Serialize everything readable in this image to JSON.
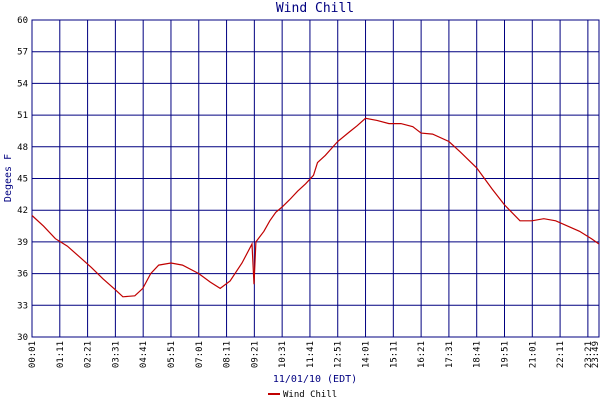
{
  "chart_data": {
    "type": "line",
    "title": "Wind Chill",
    "xlabel": "11/01/10 (EDT)",
    "ylabel": "Degees F",
    "xlim": [
      "00:01",
      "23:49"
    ],
    "xticks": [
      "00:01",
      "01:11",
      "02:21",
      "03:31",
      "04:41",
      "05:51",
      "07:01",
      "08:11",
      "09:21",
      "10:31",
      "11:41",
      "12:51",
      "14:01",
      "15:11",
      "16:21",
      "17:31",
      "18:41",
      "19:51",
      "21:01",
      "22:11",
      "23:21",
      "23:49"
    ],
    "ylim": [
      30,
      60
    ],
    "yticks": [
      30,
      33,
      36,
      39,
      42,
      45,
      48,
      51,
      54,
      57,
      60
    ],
    "grid": true,
    "grid_color": "#000080",
    "x": [
      "00:01",
      "00:30",
      "01:00",
      "01:30",
      "02:00",
      "02:30",
      "03:00",
      "03:30",
      "03:50",
      "04:20",
      "04:40",
      "05:00",
      "05:20",
      "05:51",
      "06:20",
      "07:01",
      "07:30",
      "07:55",
      "08:20",
      "08:50",
      "09:15",
      "09:20",
      "09:25",
      "09:45",
      "10:00",
      "10:15",
      "10:31",
      "10:50",
      "11:10",
      "11:30",
      "11:50",
      "12:00",
      "12:20",
      "12:51",
      "13:20",
      "13:40",
      "14:01",
      "14:30",
      "15:00",
      "15:30",
      "16:00",
      "16:21",
      "16:50",
      "17:31",
      "18:00",
      "18:41",
      "19:20",
      "19:51",
      "20:30",
      "21:00",
      "21:30",
      "22:00",
      "22:30",
      "23:00",
      "23:30",
      "23:49"
    ],
    "series": [
      {
        "name": "Wind Chill",
        "color": "#c00000",
        "values": [
          41.5,
          40.5,
          39.3,
          38.6,
          37.6,
          36.6,
          35.5,
          34.5,
          33.8,
          33.9,
          34.6,
          36.0,
          36.8,
          37.0,
          36.8,
          36.0,
          35.2,
          34.6,
          35.3,
          37.0,
          38.8,
          35.0,
          39.0,
          40.0,
          41.0,
          41.8,
          42.3,
          43.0,
          43.8,
          44.5,
          45.3,
          46.5,
          47.2,
          48.5,
          49.4,
          50.0,
          50.7,
          50.5,
          50.2,
          50.2,
          49.9,
          49.3,
          49.2,
          48.5,
          47.5,
          46.0,
          44.0,
          42.5,
          41.0,
          41.0,
          41.2,
          41.0,
          40.5,
          40.0,
          39.3,
          38.8
        ]
      }
    ],
    "legend": "bottom"
  }
}
